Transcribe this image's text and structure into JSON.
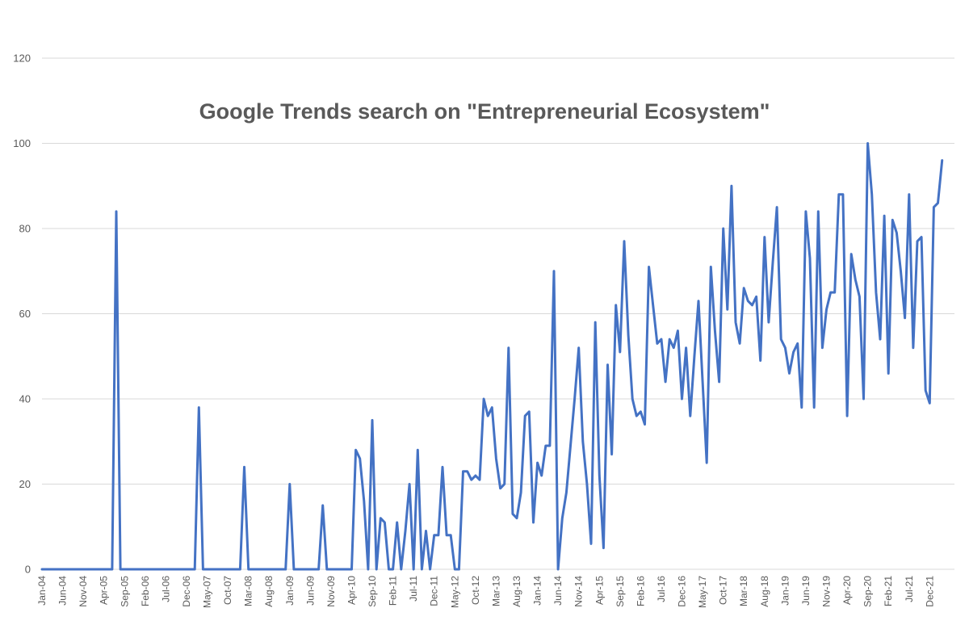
{
  "chart_data": {
    "type": "line",
    "title": "Google Trends search on \"Entrepreneurial Ecosystem\"",
    "xlabel": "",
    "ylabel": "",
    "ylim": [
      0,
      120
    ],
    "yticks": [
      "0",
      "20",
      "40",
      "60",
      "80",
      "100",
      "120"
    ],
    "grid": true,
    "legend": "none",
    "line_color": "#4472C4",
    "grid_color": "#d9d9d9",
    "x_tick_labels": [
      "Jan-04",
      "Jun-04",
      "Nov-04",
      "Apr-05",
      "Sep-05",
      "Feb-06",
      "Jul-06",
      "Dec-06",
      "May-07",
      "Oct-07",
      "Mar-08",
      "Aug-08",
      "Jan-09",
      "Jun-09",
      "Nov-09",
      "Apr-10",
      "Sep-10",
      "Feb-11",
      "Jul-11",
      "Dec-11",
      "May-12",
      "Oct-12",
      "Mar-13",
      "Aug-13",
      "Jan-14",
      "Jun-14",
      "Nov-14",
      "Apr-15",
      "Sep-15",
      "Feb-16",
      "Jul-16",
      "Dec-16",
      "May-17",
      "Oct-17",
      "Mar-18",
      "Aug-18",
      "Jan-19",
      "Jun-19",
      "Nov-19",
      "Apr-20",
      "Sep-20",
      "Feb-21",
      "Jul-21",
      "Dec-21"
    ],
    "series": [
      {
        "points": [
          [
            "Jan-04",
            0
          ],
          [
            "Jan-05",
            0
          ],
          [
            "Jun-05",
            0
          ],
          [
            "Jul-05",
            84
          ],
          [
            "Aug-05",
            0
          ],
          [
            "Sep-05",
            0
          ],
          [
            "Dec-06",
            0
          ],
          [
            "Jan-07",
            0
          ],
          [
            "Feb-07",
            0
          ],
          [
            "Mar-07",
            38
          ],
          [
            "Apr-07",
            0
          ],
          [
            "May-07",
            0
          ],
          [
            "Dec-07",
            0
          ],
          [
            "Jan-08",
            0
          ],
          [
            "Feb-08",
            24
          ],
          [
            "Mar-08",
            0
          ],
          [
            "Apr-08",
            0
          ],
          [
            "Nov-08",
            0
          ],
          [
            "Dec-08",
            0
          ],
          [
            "Jan-09",
            20
          ],
          [
            "Feb-09",
            0
          ],
          [
            "Mar-09",
            0
          ],
          [
            "Jul-09",
            0
          ],
          [
            "Aug-09",
            0
          ],
          [
            "Sep-09",
            15
          ],
          [
            "Oct-09",
            0
          ],
          [
            "Nov-09",
            0
          ],
          [
            "Apr-10",
            0
          ],
          [
            "May-10",
            28
          ],
          [
            "Jun-10",
            26
          ],
          [
            "Jul-10",
            16
          ],
          [
            "Aug-10",
            0
          ],
          [
            "Sep-10",
            35
          ],
          [
            "Oct-10",
            0
          ],
          [
            "Nov-10",
            12
          ],
          [
            "Dec-10",
            11
          ],
          [
            "Jan-11",
            0
          ],
          [
            "Feb-11",
            0
          ],
          [
            "Mar-11",
            11
          ],
          [
            "Apr-11",
            0
          ],
          [
            "May-11",
            9
          ],
          [
            "Jun-11",
            20
          ],
          [
            "Jul-11",
            0
          ],
          [
            "Aug-11",
            28
          ],
          [
            "Sep-11",
            0
          ],
          [
            "Oct-11",
            9
          ],
          [
            "Nov-11",
            0
          ],
          [
            "Dec-11",
            8
          ],
          [
            "Jan-12",
            8
          ],
          [
            "Feb-12",
            24
          ],
          [
            "Mar-12",
            8
          ],
          [
            "Apr-12",
            8
          ],
          [
            "May-12",
            0
          ],
          [
            "Jun-12",
            0
          ],
          [
            "Jul-12",
            23
          ],
          [
            "Aug-12",
            23
          ],
          [
            "Sep-12",
            21
          ],
          [
            "Oct-12",
            22
          ],
          [
            "Nov-12",
            21
          ],
          [
            "Dec-12",
            40
          ],
          [
            "Jan-13",
            36
          ],
          [
            "Feb-13",
            38
          ],
          [
            "Mar-13",
            26
          ],
          [
            "Apr-13",
            19
          ],
          [
            "May-13",
            20
          ],
          [
            "Jun-13",
            52
          ],
          [
            "Jul-13",
            13
          ],
          [
            "Aug-13",
            12
          ],
          [
            "Sep-13",
            18
          ],
          [
            "Oct-13",
            36
          ],
          [
            "Nov-13",
            37
          ],
          [
            "Dec-13",
            11
          ],
          [
            "Jan-14",
            25
          ],
          [
            "Feb-14",
            22
          ],
          [
            "Mar-14",
            29
          ],
          [
            "Apr-14",
            29
          ],
          [
            "May-14",
            70
          ],
          [
            "Jun-14",
            0
          ],
          [
            "Jul-14",
            12
          ],
          [
            "Aug-14",
            18
          ],
          [
            "Oct-14",
            40
          ],
          [
            "Nov-14",
            52
          ],
          [
            "Dec-14",
            30
          ],
          [
            "Jan-15",
            20
          ],
          [
            "Feb-15",
            6
          ],
          [
            "Mar-15",
            58
          ],
          [
            "Apr-15",
            22
          ],
          [
            "May-15",
            5
          ],
          [
            "Jun-15",
            48
          ],
          [
            "Jul-15",
            27
          ],
          [
            "Aug-15",
            62
          ],
          [
            "Sep-15",
            51
          ],
          [
            "Oct-15",
            77
          ],
          [
            "Nov-15",
            55
          ],
          [
            "Dec-15",
            40
          ],
          [
            "Jan-16",
            36
          ],
          [
            "Feb-16",
            37
          ],
          [
            "Mar-16",
            34
          ],
          [
            "Apr-16",
            71
          ],
          [
            "May-16",
            62
          ],
          [
            "Jun-16",
            53
          ],
          [
            "Jul-16",
            54
          ],
          [
            "Aug-16",
            44
          ],
          [
            "Sep-16",
            54
          ],
          [
            "Oct-16",
            52
          ],
          [
            "Nov-16",
            56
          ],
          [
            "Dec-16",
            40
          ],
          [
            "Jan-17",
            52
          ],
          [
            "Feb-17",
            36
          ],
          [
            "Mar-17",
            50
          ],
          [
            "Apr-17",
            63
          ],
          [
            "May-17",
            44
          ],
          [
            "Jun-17",
            25
          ],
          [
            "Jul-17",
            71
          ],
          [
            "Aug-17",
            56
          ],
          [
            "Sep-17",
            44
          ],
          [
            "Oct-17",
            80
          ],
          [
            "Nov-17",
            61
          ],
          [
            "Dec-17",
            90
          ],
          [
            "Jan-18",
            58
          ],
          [
            "Feb-18",
            53
          ],
          [
            "Mar-18",
            66
          ],
          [
            "Apr-18",
            63
          ],
          [
            "May-18",
            62
          ],
          [
            "Jun-18",
            64
          ],
          [
            "Jul-18",
            49
          ],
          [
            "Aug-18",
            78
          ],
          [
            "Sep-18",
            58
          ],
          [
            "Oct-18",
            72
          ],
          [
            "Nov-18",
            85
          ],
          [
            "Dec-18",
            54
          ],
          [
            "Jan-19",
            52
          ],
          [
            "Feb-19",
            46
          ],
          [
            "Mar-19",
            51
          ],
          [
            "Apr-19",
            53
          ],
          [
            "May-19",
            38
          ],
          [
            "Jun-19",
            84
          ],
          [
            "Jul-19",
            73
          ],
          [
            "Aug-19",
            38
          ],
          [
            "Sep-19",
            84
          ],
          [
            "Oct-19",
            52
          ],
          [
            "Nov-19",
            61
          ],
          [
            "Dec-19",
            65
          ],
          [
            "Jan-20",
            65
          ],
          [
            "Feb-20",
            88
          ],
          [
            "Mar-20",
            88
          ],
          [
            "Apr-20",
            36
          ],
          [
            "May-20",
            74
          ],
          [
            "Jun-20",
            68
          ],
          [
            "Jul-20",
            64
          ],
          [
            "Aug-20",
            40
          ],
          [
            "Sep-20",
            100
          ],
          [
            "Oct-20",
            88
          ],
          [
            "Nov-20",
            65
          ],
          [
            "Dec-20",
            54
          ],
          [
            "Jan-21",
            83
          ],
          [
            "Feb-21",
            46
          ],
          [
            "Mar-21",
            82
          ],
          [
            "Apr-21",
            79
          ],
          [
            "May-21",
            70
          ],
          [
            "Jun-21",
            59
          ],
          [
            "Jul-21",
            88
          ],
          [
            "Aug-21",
            52
          ],
          [
            "Sep-21",
            77
          ],
          [
            "Oct-21",
            78
          ],
          [
            "Nov-21",
            42
          ],
          [
            "Dec-21",
            39
          ],
          [
            "Jan-22",
            85
          ],
          [
            "Feb-22",
            86
          ],
          [
            "Mar-22",
            96
          ]
        ]
      }
    ]
  }
}
